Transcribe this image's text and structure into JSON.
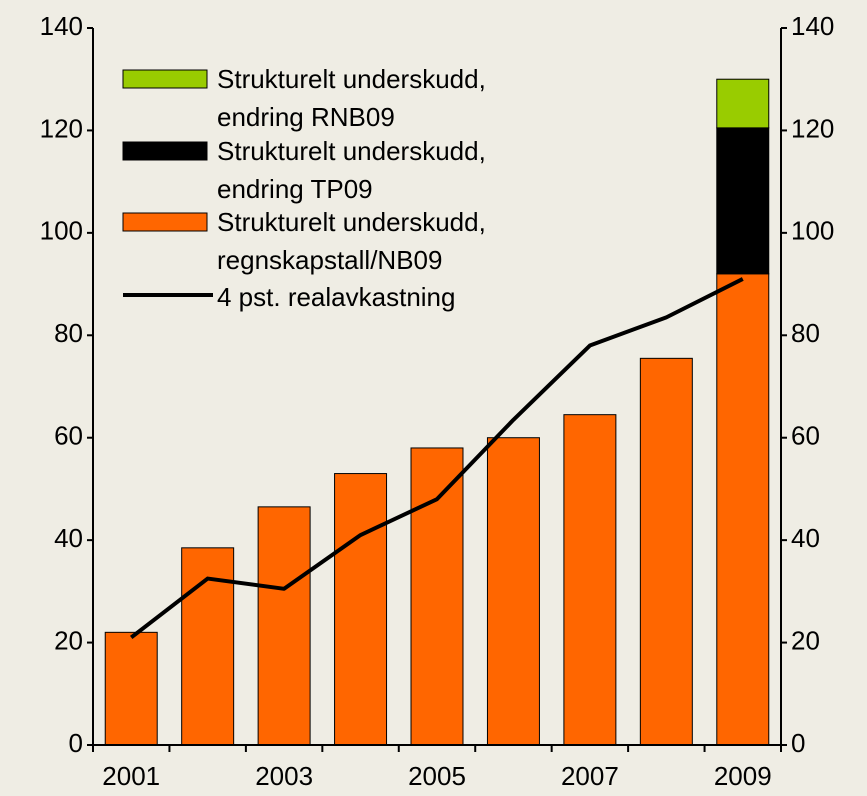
{
  "chart_data": {
    "type": "bar",
    "categories": [
      "2001",
      null,
      "2003",
      null,
      "2005",
      null,
      "2007",
      null,
      "2009"
    ],
    "series": [
      {
        "name": "Strukturelt underskudd, regnskapstall/NB09",
        "type": "bar",
        "color": "#ff6600",
        "values": [
          22,
          38.5,
          46.5,
          53,
          58,
          60,
          64.5,
          75.5,
          92
        ]
      },
      {
        "name": "Strukturelt underskudd, endring TP09",
        "type": "bar",
        "color": "#000000",
        "values": [
          null,
          null,
          null,
          null,
          null,
          null,
          null,
          null,
          28.5
        ]
      },
      {
        "name": "Strukturelt underskudd, endring RNB09",
        "type": "bar",
        "color": "#99cc00",
        "values": [
          null,
          null,
          null,
          null,
          null,
          null,
          null,
          null,
          9.5
        ]
      },
      {
        "name": "4 pst. realavkastning",
        "type": "line",
        "color": "#000000",
        "values": [
          21,
          32.5,
          30.5,
          41,
          48,
          63.5,
          78,
          83.5,
          91
        ]
      }
    ],
    "stacked": true,
    "ylim": [
      0,
      140
    ],
    "yticks": [
      0,
      20,
      40,
      60,
      80,
      100,
      120,
      140
    ],
    "y2lim": [
      0,
      140
    ],
    "y2ticks": [
      0,
      20,
      40,
      60,
      80,
      100,
      120,
      140
    ],
    "grid": false,
    "legend": "upper left"
  }
}
